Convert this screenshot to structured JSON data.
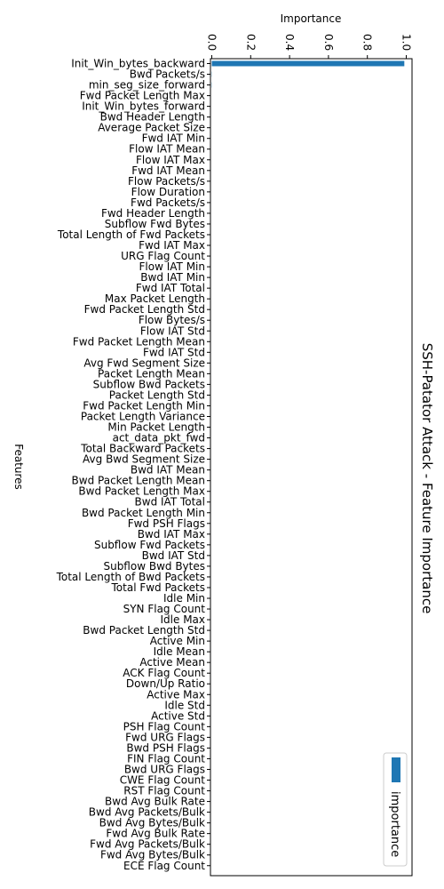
{
  "chart_data": {
    "type": "bar",
    "orientation": "horizontal",
    "title": "SSH-Patator Attack - Feature Importance",
    "xlabel": "Importance",
    "ylabel": "Features",
    "xlim": [
      0.0,
      1.02
    ],
    "xticks": [
      "0.0",
      "0.2",
      "0.4",
      "0.6",
      "0.8",
      "1.0"
    ],
    "xtick_values": [
      0.0,
      0.2,
      0.4,
      0.6,
      0.8,
      1.0
    ],
    "grid": false,
    "legend_position": "bottom-right",
    "series": [
      {
        "name": "importance",
        "color": "#1f77b4",
        "values": [
          0.99,
          0.001,
          0.001,
          0.0,
          0.0,
          0.0,
          0.0,
          0.0,
          0.0,
          0.0,
          0.0,
          0.0,
          0.0,
          0.0,
          0.0,
          0.0,
          0.0,
          0.0,
          0.0,
          0.0,
          0.0,
          0.0,
          0.0,
          0.0,
          0.0,
          0.0,
          0.0,
          0.0,
          0.0,
          0.0,
          0.0,
          0.0,
          0.0,
          0.0,
          0.0,
          0.0,
          0.0,
          0.0,
          0.0,
          0.0,
          0.0,
          0.0,
          0.0,
          0.0,
          0.0,
          0.0,
          0.0,
          0.0,
          0.0,
          0.0,
          0.0,
          0.0,
          0.0,
          0.0,
          0.0,
          0.0,
          0.0,
          0.0,
          0.0,
          0.0,
          0.0,
          0.0,
          0.0,
          0.0,
          0.0,
          0.0,
          0.0,
          0.0,
          0.0,
          0.0,
          0.0,
          0.0,
          0.0,
          0.0,
          0.0,
          0.0
        ]
      }
    ],
    "categories": [
      "Init_Win_bytes_backward",
      "Bwd Packets/s",
      "min_seg_size_forward",
      "Fwd Packet Length Max",
      "Init_Win_bytes_forward",
      "Bwd Header Length",
      "Average Packet Size",
      "Fwd IAT Min",
      "Flow IAT Mean",
      "Flow IAT Max",
      "Fwd IAT Mean",
      "Flow Packets/s",
      "Flow Duration",
      "Fwd Packets/s",
      "Fwd Header Length",
      "Subflow Fwd Bytes",
      "Total Length of Fwd Packets",
      "Fwd IAT Max",
      "URG Flag Count",
      "Flow IAT Min",
      "Bwd IAT Min",
      "Fwd IAT Total",
      "Max Packet Length",
      "Fwd Packet Length Std",
      "Flow Bytes/s",
      "Flow IAT Std",
      "Fwd Packet Length Mean",
      "Fwd IAT Std",
      "Avg Fwd Segment Size",
      "Packet Length Mean",
      "Subflow Bwd Packets",
      "Packet Length Std",
      "Fwd Packet Length Min",
      "Packet Length Variance",
      "Min Packet Length",
      "act_data_pkt_fwd",
      "Total Backward Packets",
      "Avg Bwd Segment Size",
      "Bwd IAT Mean",
      "Bwd Packet Length Mean",
      "Bwd Packet Length Max",
      "Bwd IAT Total",
      "Bwd Packet Length Min",
      "Fwd PSH Flags",
      "Bwd IAT Max",
      "Subflow Fwd Packets",
      "Bwd IAT Std",
      "Subflow Bwd Bytes",
      "Total Length of Bwd Packets",
      "Total Fwd Packets",
      "Idle Min",
      "SYN Flag Count",
      "Idle Max",
      "Bwd Packet Length Std",
      "Active Min",
      "Idle Mean",
      "Active Mean",
      "ACK Flag Count",
      "Down/Up Ratio",
      "Active Max",
      "Idle Std",
      "Active Std",
      "PSH Flag Count",
      "Fwd URG Flags",
      "Bwd PSH Flags",
      "FIN Flag Count",
      "Bwd URG Flags",
      "CWE Flag Count",
      "RST Flag Count",
      "Bwd Avg Bulk Rate",
      "Bwd Avg Packets/Bulk",
      "Bwd Avg Bytes/Bulk",
      "Fwd Avg Bulk Rate",
      "Fwd Avg Packets/Bulk",
      "Fwd Avg Bytes/Bulk",
      "ECE Flag Count"
    ]
  }
}
